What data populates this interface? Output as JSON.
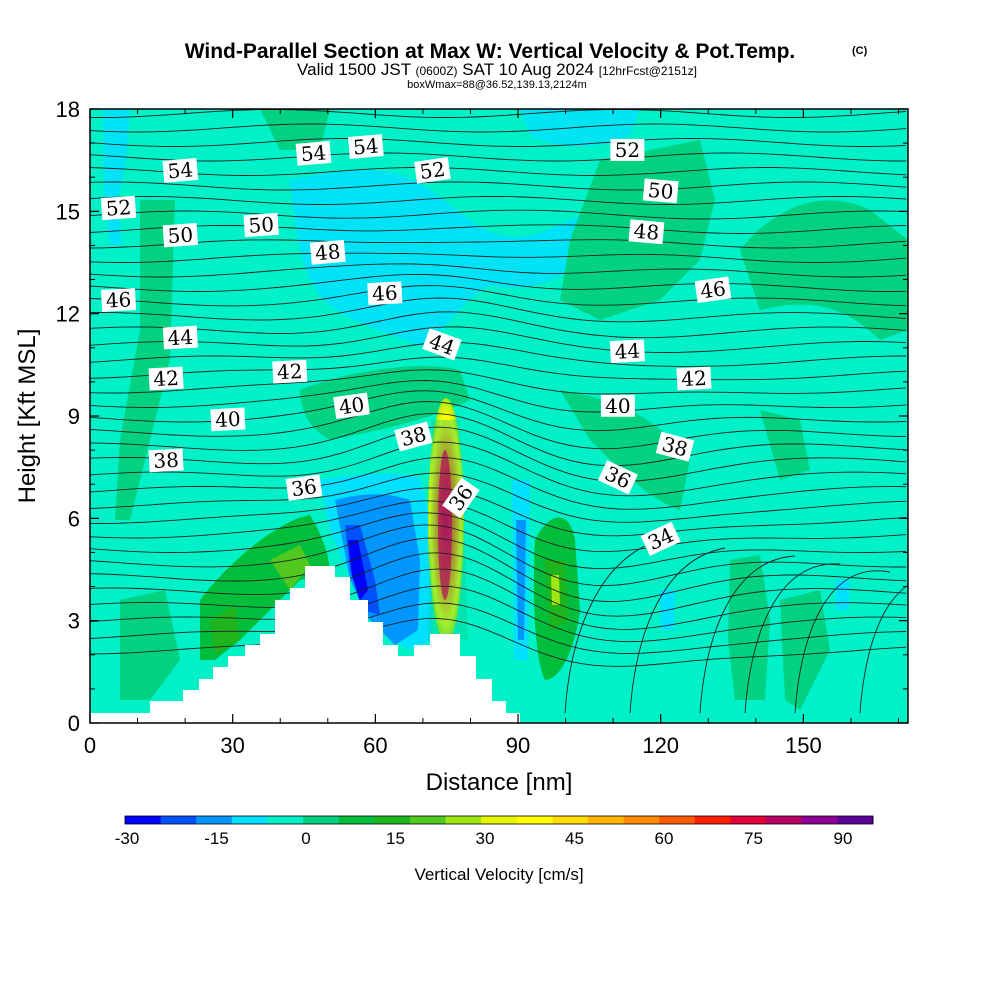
{
  "title": {
    "main": "Wind-Parallel Section at Max W: Vertical Velocity & Pot.Temp.",
    "copyright": "(C)",
    "valid_prefix": "Valid 1500 JST",
    "valid_utc": "(0600Z)",
    "valid_date": "SAT 10 Aug 2024",
    "forecast": "[12hrFcst@2151z]",
    "box_info": "boxWmax=88@36.52,139.13,2124m"
  },
  "chart_data": {
    "type": "heatmap",
    "xlabel": "Distance [nm]",
    "ylabel": "Height [Kft MSL]",
    "x_ticks": [
      0,
      30,
      60,
      90,
      120,
      150
    ],
    "y_ticks": [
      0,
      3,
      6,
      9,
      12,
      15,
      18
    ],
    "xlim": [
      0,
      172
    ],
    "ylim": [
      0,
      18
    ],
    "colorbar": {
      "title": "Vertical Velocity [cm/s]",
      "tick_labels": [
        "-30",
        "-15",
        "0",
        "15",
        "30",
        "45",
        "60",
        "75",
        "90"
      ],
      "colors": [
        "#0000ff",
        "#0050ff",
        "#0096ff",
        "#00e1ff",
        "#00f0c8",
        "#00d282",
        "#00be3c",
        "#1eb41e",
        "#50c81e",
        "#a0e614",
        "#e6f500",
        "#ffff00",
        "#ffdc00",
        "#ffb400",
        "#ff8c00",
        "#ff5a00",
        "#ff1e00",
        "#e1003c",
        "#b40064",
        "#8c0096",
        "#5a009b"
      ]
    },
    "theta_contour_labels": [
      {
        "text": "54",
        "x": 19,
        "y": 16.2,
        "r": -5
      },
      {
        "text": "54",
        "x": 47,
        "y": 16.7,
        "r": -5
      },
      {
        "text": "54",
        "x": 58,
        "y": 16.9,
        "r": -5
      },
      {
        "text": "52",
        "x": 72,
        "y": 16.2,
        "r": -8
      },
      {
        "text": "52",
        "x": 113,
        "y": 16.8,
        "r": 0
      },
      {
        "text": "52",
        "x": 6,
        "y": 15.1,
        "r": -4
      },
      {
        "text": "50",
        "x": 19,
        "y": 14.3,
        "r": -4
      },
      {
        "text": "50",
        "x": 36,
        "y": 14.6,
        "r": -4
      },
      {
        "text": "50",
        "x": 120,
        "y": 15.6,
        "r": 5
      },
      {
        "text": "48",
        "x": 50,
        "y": 13.8,
        "r": -5
      },
      {
        "text": "48",
        "x": 117,
        "y": 14.4,
        "r": 5
      },
      {
        "text": "46",
        "x": 6,
        "y": 12.4,
        "r": -3
      },
      {
        "text": "46",
        "x": 62,
        "y": 12.6,
        "r": -3
      },
      {
        "text": "46",
        "x": 131,
        "y": 12.7,
        "r": -8
      },
      {
        "text": "44",
        "x": 19,
        "y": 11.3,
        "r": -3
      },
      {
        "text": "44",
        "x": 74,
        "y": 11.1,
        "r": 20
      },
      {
        "text": "44",
        "x": 113,
        "y": 10.9,
        "r": -3
      },
      {
        "text": "42",
        "x": 16,
        "y": 10.1,
        "r": -3
      },
      {
        "text": "42",
        "x": 42,
        "y": 10.3,
        "r": -3
      },
      {
        "text": "42",
        "x": 127,
        "y": 10.1,
        "r": -3
      },
      {
        "text": "40",
        "x": 29,
        "y": 8.9,
        "r": -3
      },
      {
        "text": "40",
        "x": 55,
        "y": 9.3,
        "r": -8
      },
      {
        "text": "40",
        "x": 111,
        "y": 9.3,
        "r": 0
      },
      {
        "text": "38",
        "x": 16,
        "y": 7.7,
        "r": -3
      },
      {
        "text": "38",
        "x": 68,
        "y": 8.4,
        "r": -15
      },
      {
        "text": "38",
        "x": 123,
        "y": 8.1,
        "r": 15
      },
      {
        "text": "36",
        "x": 45,
        "y": 6.9,
        "r": -8
      },
      {
        "text": "36",
        "x": 78,
        "y": 6.6,
        "r": -55
      },
      {
        "text": "36",
        "x": 111,
        "y": 7.2,
        "r": 25
      },
      {
        "text": "34",
        "x": 120,
        "y": 5.4,
        "r": -25
      }
    ]
  }
}
